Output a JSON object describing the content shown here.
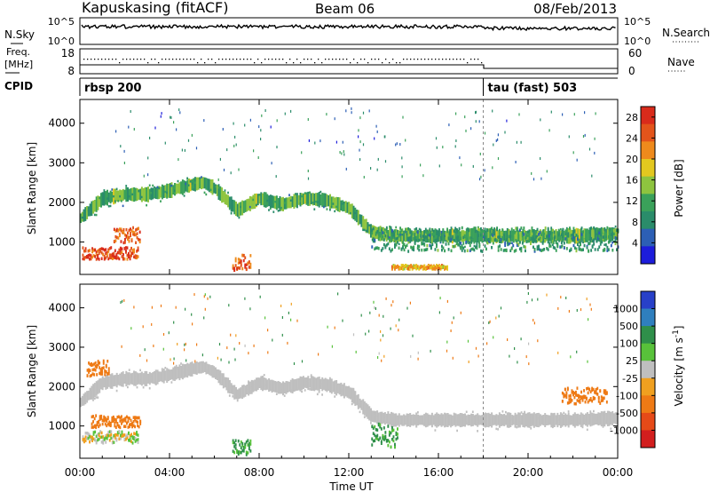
{
  "header": {
    "station": "Kapuskasing (fitACF)",
    "beam": "Beam 06",
    "date": "08/Feb/2013"
  },
  "left_labels": {
    "nsky": "N.Sky",
    "freq_line1": "Freq.",
    "freq_line2": "[MHz]",
    "cpid": "CPID"
  },
  "right_labels": {
    "nsearch": "N.Search",
    "nave": "Nave"
  },
  "nsky_ticks": [
    "10^5",
    "10^0"
  ],
  "nsearch_ticks": [
    "10^5",
    "10^0"
  ],
  "freq_ticks": [
    "18",
    "8"
  ],
  "nave_ticks": [
    "60",
    "0"
  ],
  "cpid_entries": [
    {
      "label": "rbsp 200",
      "hour": 0
    },
    {
      "label": "tau (fast) 503",
      "hour": 18
    }
  ],
  "colors": {
    "power_scale": [
      "#1d1ddb",
      "#2c5fb5",
      "#2a8c6a",
      "#3aa15a",
      "#8ec43f",
      "#e3c81f",
      "#ee8a1c",
      "#e3541b",
      "#d92b1b"
    ],
    "velocity_scale": [
      "#2840c8",
      "#2f7fbe",
      "#2f8f4a",
      "#58c23a",
      "#bfbfbf",
      "#f0a020",
      "#ee7a15",
      "#e64a18",
      "#d21e1e"
    ]
  },
  "chart_data": [
    {
      "type": "heatmap",
      "title": "",
      "xlabel": "Time UT",
      "ylabel": "Slant Range [km]",
      "xlim": [
        0,
        24
      ],
      "ylim": [
        180,
        4600
      ],
      "x_ticks": [
        "00:00",
        "04:00",
        "08:00",
        "12:00",
        "16:00",
        "20:00",
        "00:00"
      ],
      "y_ticks": [
        1000,
        2000,
        3000,
        4000
      ],
      "colorbar": {
        "label": "Power [dB]",
        "ticks": [
          4,
          8,
          12,
          16,
          20,
          24,
          28
        ],
        "range": [
          0,
          30
        ]
      },
      "features": [
        {
          "name": "dominant scatter band",
          "t": [
            0,
            1,
            2,
            3,
            4,
            5,
            5.5,
            6,
            7,
            8,
            9,
            10,
            11,
            12,
            13,
            14,
            18,
            22,
            24
          ],
          "range_km": [
            1600,
            2100,
            2200,
            2200,
            2300,
            2450,
            2500,
            2350,
            1800,
            2100,
            1950,
            2100,
            2050,
            1850,
            1250,
            1150,
            1150,
            1150,
            1200
          ],
          "power_db": 12
        },
        {
          "name": "near-range echoes early",
          "t_start": 0.1,
          "t_end": 2.6,
          "range_km": [
            600,
            900
          ],
          "power_db": 26
        },
        {
          "name": "mid-range echoes early",
          "t_start": 1.5,
          "t_end": 2.7,
          "range_km": [
            1000,
            1400
          ],
          "power_db": 24
        },
        {
          "name": "short descending trace",
          "t_start": 6.8,
          "t_end": 7.6,
          "range_km": [
            300,
            700
          ],
          "power_db": 25
        },
        {
          "name": "near-range patch",
          "t_start": 13.9,
          "t_end": 16.4,
          "range_km": [
            350,
            450
          ],
          "power_db": 20
        },
        {
          "name": "evening broadband",
          "t_start": 13,
          "t_end": 24,
          "range_km": [
            800,
            1400
          ],
          "power_db": 10
        }
      ]
    },
    {
      "type": "heatmap",
      "title": "",
      "xlabel": "Time UT",
      "ylabel": "Slant Range [km]",
      "xlim": [
        0,
        24
      ],
      "ylim": [
        180,
        4600
      ],
      "x_ticks": [
        "00:00",
        "04:00",
        "08:00",
        "12:00",
        "16:00",
        "20:00",
        "00:00"
      ],
      "y_ticks": [
        1000,
        2000,
        3000,
        4000
      ],
      "colorbar": {
        "label": "Velocity [m s^-1]",
        "ticks": [
          1000,
          500,
          100,
          25,
          -25,
          -100,
          -500,
          -1000
        ],
        "range": [
          -1000,
          1000
        ]
      },
      "features": [
        {
          "name": "ground scatter band",
          "t": [
            0,
            1,
            2,
            3,
            4,
            5,
            5.5,
            6,
            7,
            8,
            9,
            10,
            11,
            12,
            13,
            14,
            18,
            22,
            24
          ],
          "range_km": [
            1600,
            2100,
            2200,
            2200,
            2300,
            2450,
            2500,
            2350,
            1800,
            2100,
            1950,
            2100,
            2050,
            1850,
            1250,
            1150,
            1150,
            1150,
            1200
          ],
          "velocity_ms": 0
        },
        {
          "name": "early near-range",
          "t_start": 0.1,
          "t_end": 2.6,
          "range_km": [
            600,
            900
          ],
          "velocity_ms": 0
        },
        {
          "name": "early ionospheric echoes",
          "t_start": 0.5,
          "t_end": 2.7,
          "range_km": [
            1000,
            1300
          ],
          "velocity_ms": -300
        },
        {
          "name": "early high echoes",
          "t_start": 0.3,
          "t_end": 1.3,
          "range_km": [
            2300,
            2700
          ],
          "velocity_ms": -200
        },
        {
          "name": "descending trace",
          "t_start": 6.8,
          "t_end": 7.6,
          "range_km": [
            300,
            700
          ],
          "velocity_ms": 150
        },
        {
          "name": "afternoon echoes",
          "t_start": 13.0,
          "t_end": 14.2,
          "range_km": [
            500,
            1100
          ],
          "velocity_ms": 150
        },
        {
          "name": "evening echoes",
          "t_start": 21.5,
          "t_end": 23.5,
          "range_km": [
            1600,
            2000
          ],
          "velocity_ms": -200
        }
      ]
    }
  ]
}
